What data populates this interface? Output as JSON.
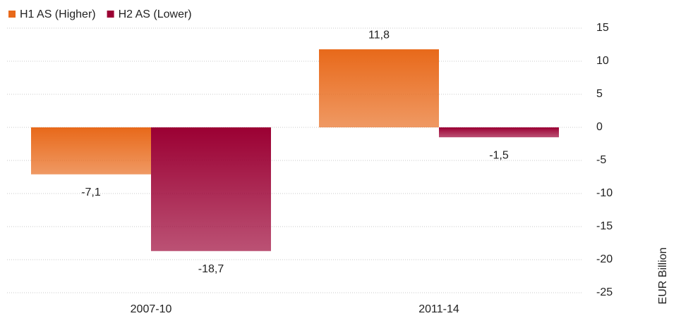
{
  "chart_data": {
    "type": "bar",
    "categories": [
      "2007-10",
      "2011-14"
    ],
    "series": [
      {
        "name": "H1 AS (Higher)",
        "color": "#e8691a",
        "values": [
          -7.1,
          11.8
        ],
        "value_labels": [
          "-7,1",
          "11,8"
        ]
      },
      {
        "name": "H2 AS (Lower)",
        "color": "#9b0033",
        "values": [
          -18.7,
          -1.5
        ],
        "value_labels": [
          "-18,7",
          "-1,5"
        ]
      }
    ],
    "y_axis_label": "EUR Billion",
    "ylim": [
      -25,
      15
    ],
    "yticks": [
      -25,
      -20,
      -15,
      -10,
      -5,
      0,
      5,
      10,
      15
    ],
    "grid": true,
    "legend": "top-left"
  }
}
